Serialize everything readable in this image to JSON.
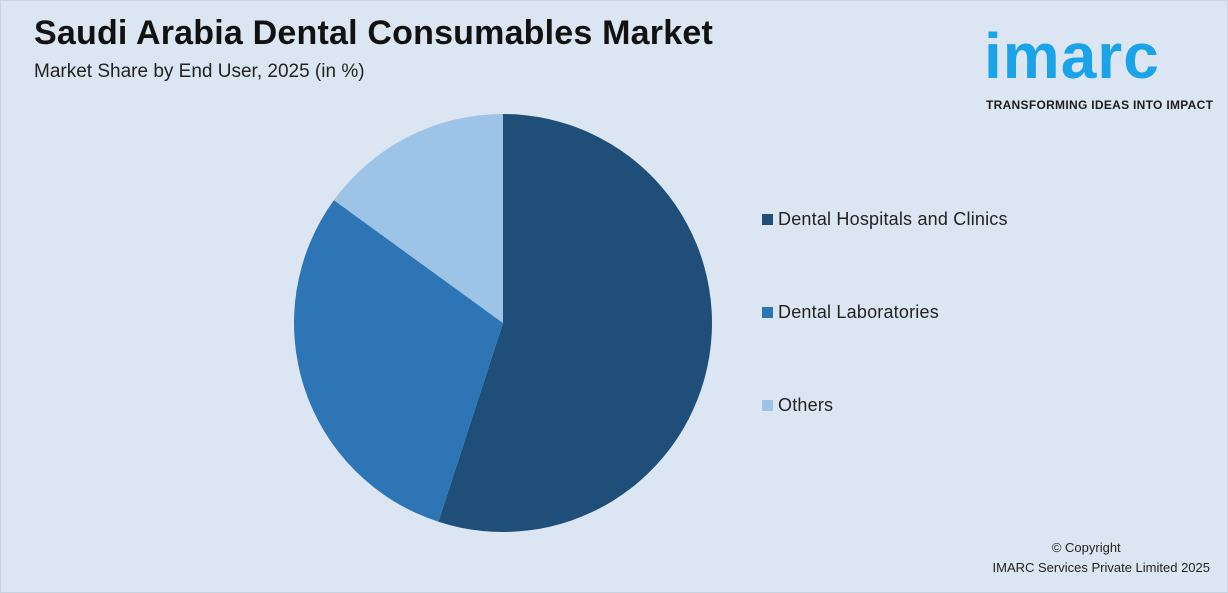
{
  "chart_data": {
    "type": "pie",
    "title": "Saudi Arabia Dental Consumables Market",
    "subtitle": "Market Share by End User, 2025 (in %)",
    "categories": [
      "Dental Hospitals and Clinics",
      "Dental Laboratories",
      "Others"
    ],
    "values": [
      55,
      30,
      15
    ],
    "colors": [
      "#1f4e79",
      "#2e75b6",
      "#9dc3e6"
    ],
    "legend_position": "right"
  },
  "logo": {
    "word": "imarc",
    "tagline": "TRANSFORMING IDEAS INTO IMPACT",
    "color": "#1aa3e8"
  },
  "footer": {
    "copyright": "© Copyright",
    "company": "IMARC Services Private Limited 2025"
  }
}
